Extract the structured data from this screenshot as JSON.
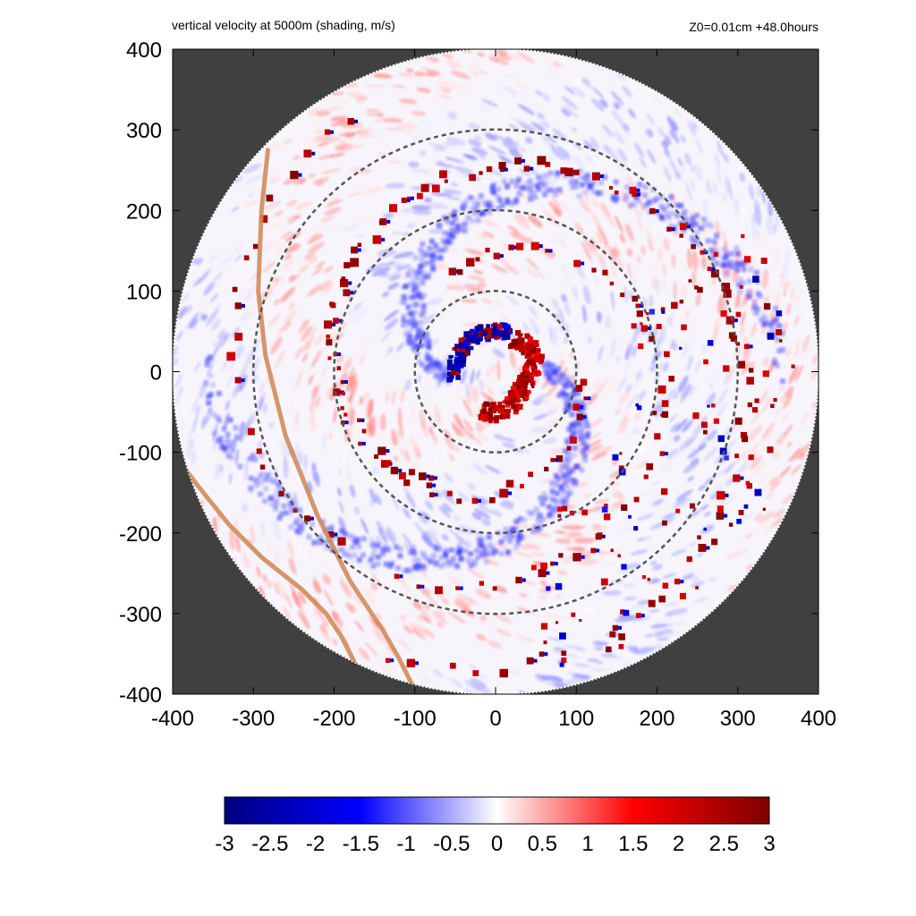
{
  "header": {
    "title_left": "vertical velocity at 5000m (shading, m/s)",
    "title_right": "Z0=0.01cm  +48.0hours"
  },
  "chart_data": {
    "type": "heatmap",
    "title": "vertical velocity at 5000m (shading, m/s)",
    "subtitle": "Z0=0.01cm  +48.0hours",
    "xlim": [
      -400,
      400
    ],
    "ylim": [
      -400,
      400
    ],
    "xticks": [
      "-400",
      "-300",
      "-200",
      "-100",
      "0",
      "100",
      "200",
      "300",
      "400"
    ],
    "yticks": [
      "400",
      "300",
      "200",
      "100",
      "0",
      "-100",
      "-200",
      "-300",
      "-400"
    ],
    "domain_radius": 400,
    "range_rings": [
      100,
      200,
      300
    ],
    "colorbar": {
      "min": -3,
      "max": 3,
      "ticks": [
        "-3",
        "-2.5",
        "-2",
        "-1.5",
        "-1",
        "-0.5",
        "0",
        "0.5",
        "1",
        "1.5",
        "2",
        "2.5",
        "3"
      ],
      "colors": [
        "#00007f",
        "#0000ff",
        "#ffffff",
        "#ff0000",
        "#7f0000"
      ]
    },
    "background_color": "#404040",
    "coastline_color": "#d08c5a",
    "eyewall": {
      "updraft_arc_deg": [
        -110,
        60
      ],
      "downdraft_arc_deg": [
        70,
        190
      ],
      "radius": 45
    },
    "rainbands": [
      {
        "r0": 100,
        "theta0_deg": 0,
        "r1": 330,
        "theta1_deg": -400
      },
      {
        "r0": 130,
        "theta0_deg": 120,
        "r1": 360,
        "theta1_deg": -240
      },
      {
        "r0": 160,
        "theta0_deg": 240,
        "r1": 380,
        "theta1_deg": -110
      }
    ],
    "coastlines": [
      [
        [
          -282,
          275
        ],
        [
          -290,
          200
        ],
        [
          -294,
          100
        ],
        [
          -285,
          20
        ],
        [
          -260,
          -80
        ],
        [
          -220,
          -180
        ],
        [
          -180,
          -260
        ],
        [
          -140,
          -320
        ],
        [
          -120,
          -355
        ],
        [
          -100,
          -395
        ]
      ],
      [
        [
          -400,
          -100
        ],
        [
          -370,
          -140
        ],
        [
          -330,
          -190
        ],
        [
          -290,
          -230
        ],
        [
          -240,
          -270
        ],
        [
          -210,
          -300
        ],
        [
          -190,
          -330
        ],
        [
          -175,
          -360
        ]
      ]
    ]
  }
}
